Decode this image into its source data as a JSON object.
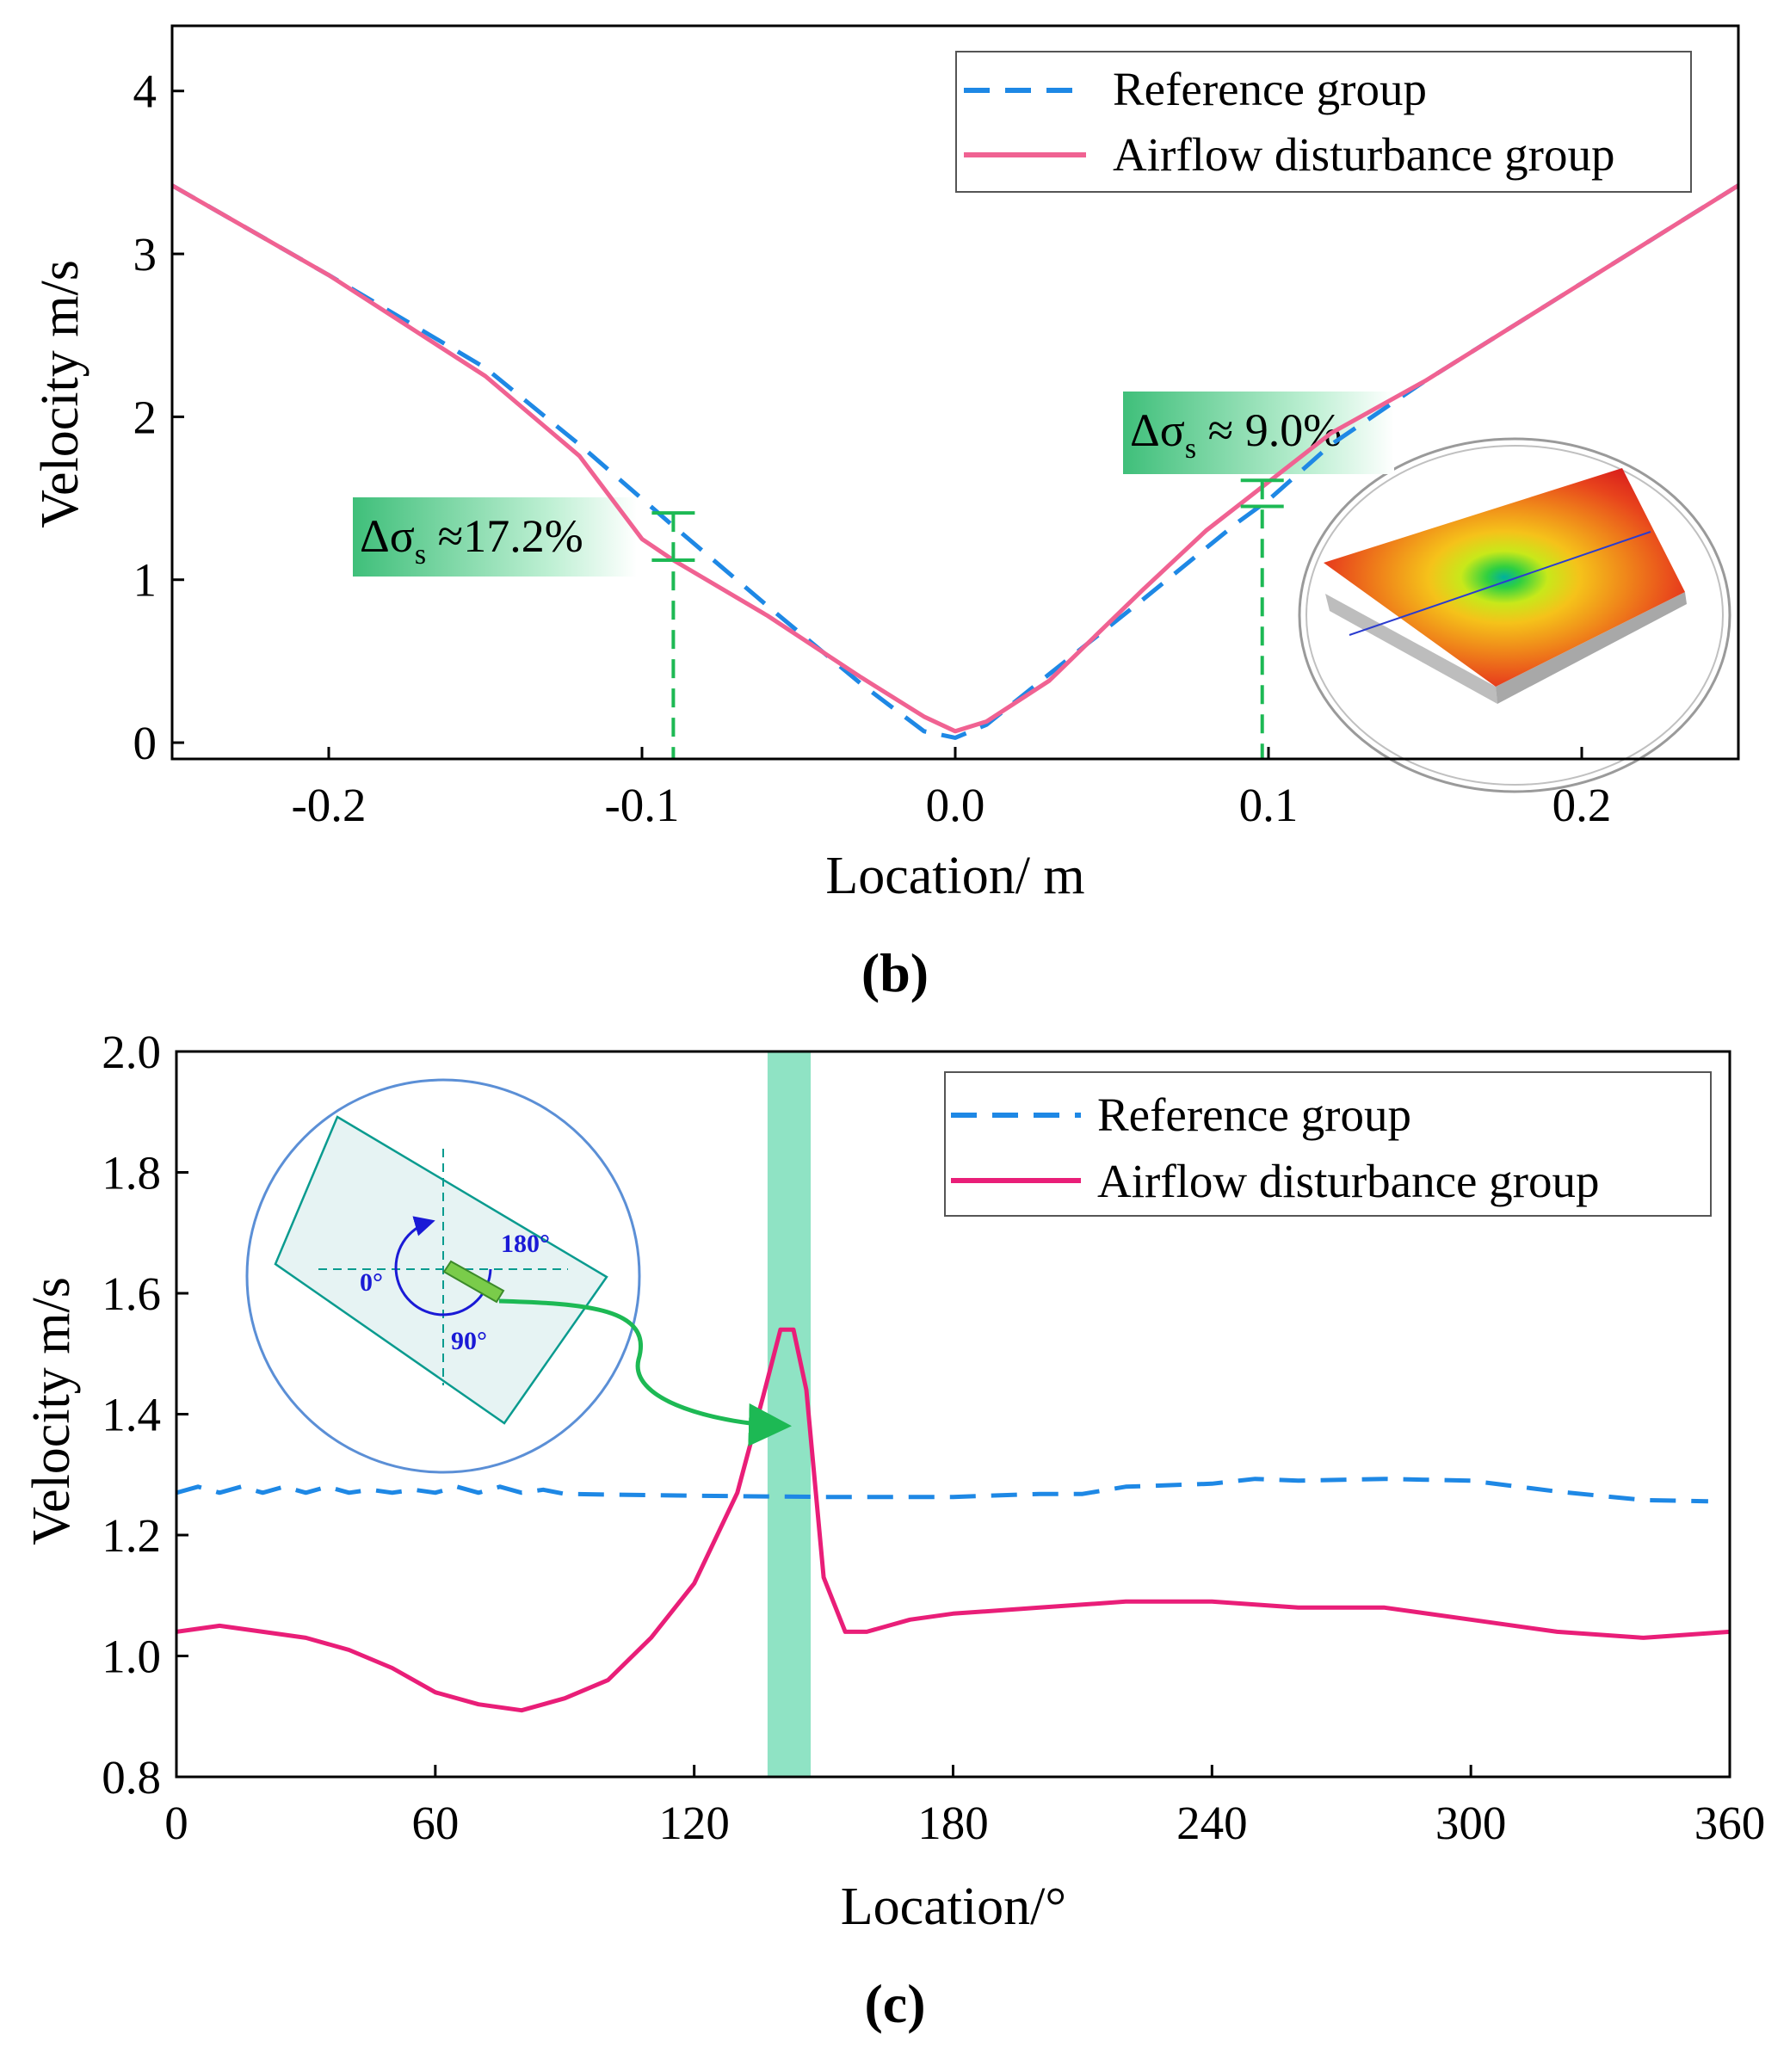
{
  "chart_data": [
    {
      "panel_label": "(b)",
      "type": "line",
      "xlabel": "Location/ m",
      "ylabel": "Velocity m/s",
      "xlim": [
        -0.25,
        0.25
      ],
      "ylim": [
        -0.1,
        4.4
      ],
      "xticks": [
        -0.2,
        -0.1,
        0.0,
        0.1,
        0.2
      ],
      "xtick_labels": [
        "-0.2",
        "-0.1",
        "0.0",
        "0.1",
        "0.2"
      ],
      "yticks": [
        0,
        1,
        2,
        3,
        4
      ],
      "ytick_labels": [
        "0",
        "1",
        "2",
        "3",
        "4"
      ],
      "legend_position": "top-right",
      "series": [
        {
          "name": "Reference group",
          "color": "#1e88e5",
          "style": "dashed",
          "x": [
            -0.25,
            -0.2,
            -0.15,
            -0.12,
            -0.09,
            -0.06,
            -0.03,
            -0.01,
            0.0,
            0.01,
            0.03,
            0.06,
            0.09,
            0.1,
            0.12,
            0.15,
            0.2,
            0.25
          ],
          "y": [
            3.42,
            2.87,
            2.3,
            1.83,
            1.33,
            0.84,
            0.36,
            0.07,
            0.03,
            0.11,
            0.42,
            0.88,
            1.35,
            1.49,
            1.83,
            2.22,
            2.82,
            3.42
          ]
        },
        {
          "name": "Airflow disturbance group",
          "color": "#f06292",
          "style": "solid",
          "x": [
            -0.25,
            -0.2,
            -0.15,
            -0.12,
            -0.1,
            -0.09,
            -0.06,
            -0.03,
            -0.01,
            0.0,
            0.01,
            0.03,
            0.06,
            0.08,
            0.1,
            0.12,
            0.15,
            0.2,
            0.25
          ],
          "y": [
            3.42,
            2.87,
            2.25,
            1.76,
            1.25,
            1.12,
            0.78,
            0.4,
            0.16,
            0.07,
            0.13,
            0.38,
            0.94,
            1.3,
            1.6,
            1.9,
            2.22,
            2.82,
            3.42
          ]
        }
      ],
      "annotations": [
        {
          "text": "Δσ",
          "subscript": "s",
          "suffix": " ≈17.2%",
          "at_x": -0.09,
          "y_low": 1.12,
          "y_high": 1.41
        },
        {
          "text": "Δσ",
          "subscript": "s",
          "suffix": " ≈ 9.0%",
          "at_x": 0.098,
          "y_low": 1.45,
          "y_high": 1.61
        }
      ],
      "inset": "contour-plot-icon"
    },
    {
      "panel_label": "(c)",
      "type": "line",
      "xlabel": "Location/°",
      "ylabel": "Velocity m/s",
      "xlim": [
        0,
        360
      ],
      "ylim": [
        0.8,
        2.0
      ],
      "xticks": [
        0,
        60,
        120,
        180,
        240,
        300,
        360
      ],
      "xtick_labels": [
        "0",
        "60",
        "120",
        "180",
        "240",
        "300",
        "360"
      ],
      "yticks": [
        0.8,
        1.0,
        1.2,
        1.4,
        1.6,
        1.8,
        2.0
      ],
      "ytick_labels": [
        "0.8",
        "1.0",
        "1.2",
        "1.4",
        "1.6",
        "1.8",
        "2.0"
      ],
      "legend_position": "top-right",
      "highlight_band": {
        "x_start": 137,
        "x_end": 147,
        "color": "#8fe3c4"
      },
      "series": [
        {
          "name": "Reference group",
          "color": "#1e88e5",
          "style": "dashed",
          "x": [
            0,
            5,
            10,
            15,
            20,
            25,
            30,
            35,
            40,
            45,
            50,
            55,
            60,
            65,
            70,
            75,
            80,
            85,
            90,
            120,
            150,
            180,
            200,
            210,
            220,
            240,
            250,
            260,
            280,
            300,
            320,
            340,
            355
          ],
          "y": [
            1.27,
            1.28,
            1.27,
            1.28,
            1.27,
            1.28,
            1.27,
            1.28,
            1.27,
            1.275,
            1.27,
            1.275,
            1.27,
            1.28,
            1.27,
            1.28,
            1.27,
            1.275,
            1.268,
            1.265,
            1.263,
            1.263,
            1.268,
            1.268,
            1.28,
            1.285,
            1.293,
            1.29,
            1.293,
            1.29,
            1.272,
            1.258,
            1.256
          ]
        },
        {
          "name": "Airflow disturbance group",
          "color": "#e91e78",
          "style": "solid",
          "x": [
            0,
            10,
            20,
            30,
            40,
            50,
            60,
            70,
            80,
            90,
            100,
            110,
            120,
            130,
            136,
            140,
            143,
            146,
            150,
            155,
            160,
            170,
            180,
            200,
            220,
            240,
            260,
            280,
            300,
            320,
            340,
            360
          ],
          "y": [
            1.04,
            1.05,
            1.04,
            1.03,
            1.01,
            0.98,
            0.94,
            0.92,
            0.91,
            0.93,
            0.96,
            1.03,
            1.12,
            1.27,
            1.43,
            1.54,
            1.54,
            1.44,
            1.13,
            1.04,
            1.04,
            1.06,
            1.07,
            1.08,
            1.09,
            1.09,
            1.08,
            1.08,
            1.06,
            1.04,
            1.03,
            1.04
          ]
        }
      ],
      "inset": {
        "labels": [
          "180°",
          "0°",
          "90°"
        ],
        "color": "#1a1ad6"
      }
    }
  ]
}
